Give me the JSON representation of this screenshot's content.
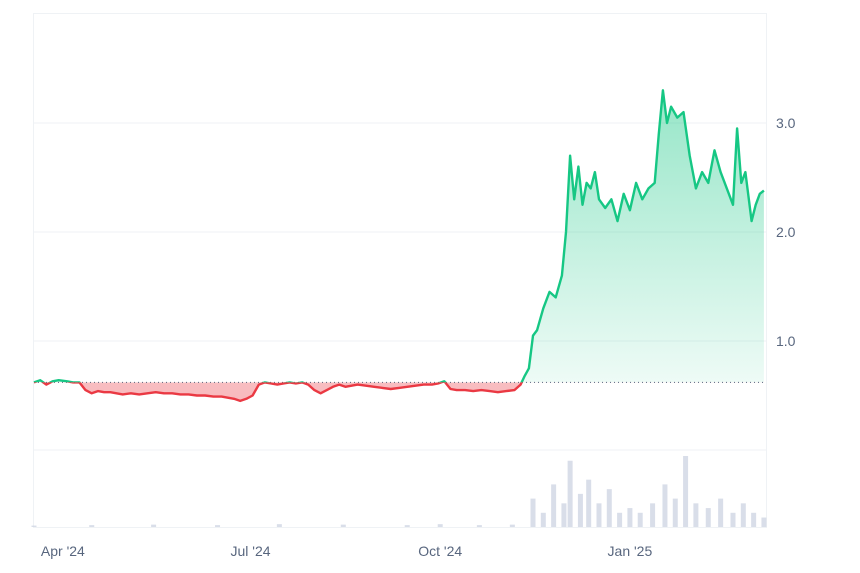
{
  "chart_data": {
    "type": "area",
    "title": "",
    "xlabel": "",
    "ylabel": "",
    "baseline": 0.62,
    "ylim": [
      -0.8,
      4.1
    ],
    "grid": true,
    "legend": "none",
    "x_ticks": [
      {
        "label": "Apr '24",
        "date": "2024-04-01"
      },
      {
        "label": "Jul '24",
        "date": "2024-07-01"
      },
      {
        "label": "Oct '24",
        "date": "2024-10-01"
      },
      {
        "label": "Jan '25",
        "date": "2025-01-01"
      }
    ],
    "y_ticks": [
      {
        "label": "3.0",
        "value": 3.0
      },
      {
        "label": "2.0",
        "value": 2.0
      },
      {
        "label": "1.0",
        "value": 1.0
      }
    ],
    "colors": {
      "up_line": "#16c784",
      "down_line": "#ea3943",
      "up_fill": "#16c784",
      "down_fill": "#ea3943",
      "volume": "#cfd6e4",
      "grid": "#eff2f5",
      "baseline": "#58667e"
    },
    "series": [
      {
        "values": [
          [
            "2024-03-18",
            0.62
          ],
          [
            "2024-03-21",
            0.64
          ],
          [
            "2024-03-24",
            0.6
          ],
          [
            "2024-03-27",
            0.63
          ],
          [
            "2024-03-30",
            0.64
          ],
          [
            "2024-04-03",
            0.63
          ],
          [
            "2024-04-06",
            0.62
          ],
          [
            "2024-04-09",
            0.62
          ],
          [
            "2024-04-12",
            0.55
          ],
          [
            "2024-04-15",
            0.52
          ],
          [
            "2024-04-18",
            0.54
          ],
          [
            "2024-04-21",
            0.53
          ],
          [
            "2024-04-24",
            0.53
          ],
          [
            "2024-04-27",
            0.52
          ],
          [
            "2024-04-30",
            0.51
          ],
          [
            "2024-05-04",
            0.52
          ],
          [
            "2024-05-08",
            0.51
          ],
          [
            "2024-05-12",
            0.52
          ],
          [
            "2024-05-16",
            0.53
          ],
          [
            "2024-05-20",
            0.52
          ],
          [
            "2024-05-24",
            0.52
          ],
          [
            "2024-05-28",
            0.51
          ],
          [
            "2024-06-01",
            0.51
          ],
          [
            "2024-06-05",
            0.5
          ],
          [
            "2024-06-09",
            0.5
          ],
          [
            "2024-06-13",
            0.49
          ],
          [
            "2024-06-17",
            0.49
          ],
          [
            "2024-06-20",
            0.48
          ],
          [
            "2024-06-23",
            0.47
          ],
          [
            "2024-06-26",
            0.45
          ],
          [
            "2024-06-29",
            0.47
          ],
          [
            "2024-07-02",
            0.5
          ],
          [
            "2024-07-05",
            0.6
          ],
          [
            "2024-07-08",
            0.62
          ],
          [
            "2024-07-11",
            0.61
          ],
          [
            "2024-07-14",
            0.6
          ],
          [
            "2024-07-17",
            0.61
          ],
          [
            "2024-07-20",
            0.62
          ],
          [
            "2024-07-23",
            0.61
          ],
          [
            "2024-07-26",
            0.62
          ],
          [
            "2024-07-29",
            0.6
          ],
          [
            "2024-08-01",
            0.55
          ],
          [
            "2024-08-04",
            0.52
          ],
          [
            "2024-08-07",
            0.55
          ],
          [
            "2024-08-10",
            0.58
          ],
          [
            "2024-08-13",
            0.6
          ],
          [
            "2024-08-16",
            0.58
          ],
          [
            "2024-08-19",
            0.59
          ],
          [
            "2024-08-22",
            0.6
          ],
          [
            "2024-08-26",
            0.59
          ],
          [
            "2024-08-30",
            0.58
          ],
          [
            "2024-09-03",
            0.57
          ],
          [
            "2024-09-07",
            0.56
          ],
          [
            "2024-09-11",
            0.57
          ],
          [
            "2024-09-15",
            0.58
          ],
          [
            "2024-09-19",
            0.59
          ],
          [
            "2024-09-23",
            0.6
          ],
          [
            "2024-09-27",
            0.6
          ],
          [
            "2024-09-30",
            0.61
          ],
          [
            "2024-10-03",
            0.63
          ],
          [
            "2024-10-06",
            0.56
          ],
          [
            "2024-10-09",
            0.55
          ],
          [
            "2024-10-13",
            0.55
          ],
          [
            "2024-10-17",
            0.54
          ],
          [
            "2024-10-21",
            0.55
          ],
          [
            "2024-10-25",
            0.54
          ],
          [
            "2024-10-29",
            0.53
          ],
          [
            "2024-11-02",
            0.54
          ],
          [
            "2024-11-06",
            0.55
          ],
          [
            "2024-11-09",
            0.6
          ],
          [
            "2024-11-11",
            0.68
          ],
          [
            "2024-11-13",
            0.75
          ],
          [
            "2024-11-15",
            1.05
          ],
          [
            "2024-11-17",
            1.1
          ],
          [
            "2024-11-20",
            1.3
          ],
          [
            "2024-11-23",
            1.45
          ],
          [
            "2024-11-26",
            1.4
          ],
          [
            "2024-11-29",
            1.6
          ],
          [
            "2024-12-01",
            2.0
          ],
          [
            "2024-12-03",
            2.7
          ],
          [
            "2024-12-05",
            2.3
          ],
          [
            "2024-12-07",
            2.6
          ],
          [
            "2024-12-09",
            2.25
          ],
          [
            "2024-12-11",
            2.45
          ],
          [
            "2024-12-13",
            2.4
          ],
          [
            "2024-12-15",
            2.55
          ],
          [
            "2024-12-17",
            2.3
          ],
          [
            "2024-12-20",
            2.22
          ],
          [
            "2024-12-23",
            2.3
          ],
          [
            "2024-12-26",
            2.1
          ],
          [
            "2024-12-29",
            2.35
          ],
          [
            "2025-01-01",
            2.2
          ],
          [
            "2025-01-04",
            2.45
          ],
          [
            "2025-01-07",
            2.3
          ],
          [
            "2025-01-10",
            2.4
          ],
          [
            "2025-01-13",
            2.45
          ],
          [
            "2025-01-15",
            2.9
          ],
          [
            "2025-01-17",
            3.3
          ],
          [
            "2025-01-19",
            3.0
          ],
          [
            "2025-01-21",
            3.15
          ],
          [
            "2025-01-24",
            3.05
          ],
          [
            "2025-01-27",
            3.1
          ],
          [
            "2025-01-30",
            2.7
          ],
          [
            "2025-02-02",
            2.4
          ],
          [
            "2025-02-05",
            2.55
          ],
          [
            "2025-02-08",
            2.45
          ],
          [
            "2025-02-11",
            2.75
          ],
          [
            "2025-02-14",
            2.55
          ],
          [
            "2025-02-17",
            2.4
          ],
          [
            "2025-02-20",
            2.25
          ],
          [
            "2025-02-22",
            2.95
          ],
          [
            "2025-02-24",
            2.45
          ],
          [
            "2025-02-26",
            2.55
          ],
          [
            "2025-03-01",
            2.1
          ],
          [
            "2025-03-03",
            2.25
          ],
          [
            "2025-03-05",
            2.35
          ],
          [
            "2025-03-07",
            2.38
          ]
        ]
      }
    ],
    "volume": [
      [
        "2024-03-18",
        0.3
      ],
      [
        "2024-04-15",
        0.4
      ],
      [
        "2024-05-15",
        0.5
      ],
      [
        "2024-06-15",
        0.4
      ],
      [
        "2024-07-15",
        0.6
      ],
      [
        "2024-08-15",
        0.5
      ],
      [
        "2024-09-15",
        0.4
      ],
      [
        "2024-10-01",
        0.6
      ],
      [
        "2024-10-20",
        0.4
      ],
      [
        "2024-11-05",
        0.5
      ],
      [
        "2024-11-15",
        6
      ],
      [
        "2024-11-20",
        3
      ],
      [
        "2024-11-25",
        9
      ],
      [
        "2024-11-30",
        5
      ],
      [
        "2024-12-03",
        14
      ],
      [
        "2024-12-08",
        7
      ],
      [
        "2024-12-12",
        10
      ],
      [
        "2024-12-17",
        5
      ],
      [
        "2024-12-22",
        8
      ],
      [
        "2024-12-27",
        3
      ],
      [
        "2025-01-01",
        4
      ],
      [
        "2025-01-06",
        3
      ],
      [
        "2025-01-12",
        5
      ],
      [
        "2025-01-18",
        9
      ],
      [
        "2025-01-23",
        6
      ],
      [
        "2025-01-28",
        15
      ],
      [
        "2025-02-02",
        5
      ],
      [
        "2025-02-08",
        4
      ],
      [
        "2025-02-14",
        6
      ],
      [
        "2025-02-20",
        3
      ],
      [
        "2025-02-25",
        5
      ],
      [
        "2025-03-02",
        3
      ],
      [
        "2025-03-07",
        2
      ]
    ]
  }
}
